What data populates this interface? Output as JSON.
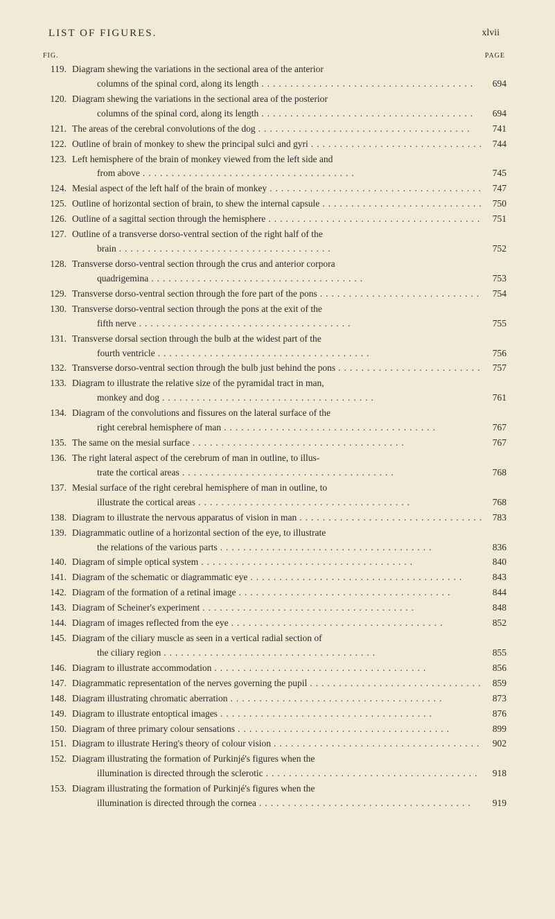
{
  "header": {
    "title": "LIST OF FIGURES.",
    "page_label": "xlvii"
  },
  "column_headers": {
    "left": "FIG.",
    "right": "PAGE"
  },
  "dots_fill": ".....................................",
  "entries": [
    {
      "fig": "119.",
      "line1": "Diagram shewing the variations in the sectional area of the anterior",
      "line2": "columns of the spinal cord, along its length",
      "page": "694"
    },
    {
      "fig": "120.",
      "line1": "Diagram shewing the variations in the sectional area of the posterior",
      "line2": "columns of the spinal cord, along its length",
      "page": "694"
    },
    {
      "fig": "121.",
      "line1": "The areas of the cerebral convolutions of the dog",
      "page": "741"
    },
    {
      "fig": "122.",
      "line1": "Outline of brain of monkey to shew the principal sulci and gyri",
      "page": "744"
    },
    {
      "fig": "123.",
      "line1": "Left hemisphere of the brain of monkey viewed from the left side and",
      "line2": "from above",
      "page": "745"
    },
    {
      "fig": "124.",
      "line1": "Mesial aspect of the left half of the brain of monkey",
      "page": "747"
    },
    {
      "fig": "125.",
      "line1": "Outline of horizontal section of brain, to shew the internal capsule",
      "page": "750"
    },
    {
      "fig": "126.",
      "line1": "Outline of a sagittal section through the hemisphere",
      "page": "751"
    },
    {
      "fig": "127.",
      "line1": "Outline of a transverse dorso-ventral section of the right half of the",
      "line2": "brain",
      "page": "752"
    },
    {
      "fig": "128.",
      "line1": "Transverse dorso-ventral section through the crus and anterior corpora",
      "line2": "quadrigemina",
      "page": "753"
    },
    {
      "fig": "129.",
      "line1": "Transverse dorso-ventral section through the fore part of the pons",
      "page": "754"
    },
    {
      "fig": "130.",
      "line1": "Transverse dorso-ventral section through the pons at the exit of the",
      "line2": "fifth nerve",
      "page": "755"
    },
    {
      "fig": "131.",
      "line1": "Transverse dorsal section through the bulb at the widest part of the",
      "line2": "fourth ventricle",
      "page": "756"
    },
    {
      "fig": "132.",
      "line1": "Transverse dorso-ventral section through the bulb just behind the pons",
      "page": "757"
    },
    {
      "fig": "133.",
      "line1": "Diagram to illustrate the relative size of the pyramidal tract in man,",
      "line2": "monkey and dog",
      "page": "761"
    },
    {
      "fig": "134.",
      "line1": "Diagram of the convolutions and fissures on the lateral surface of the",
      "line2": "right cerebral hemisphere of man",
      "page": "767"
    },
    {
      "fig": "135.",
      "line1": "The same on the mesial surface",
      "page": "767"
    },
    {
      "fig": "136.",
      "line1": "The right lateral aspect of the cerebrum of man in outline, to illus-",
      "line2": "trate the cortical areas",
      "page": "768"
    },
    {
      "fig": "137.",
      "line1": "Mesial surface of the right cerebral hemisphere of man in outline, to",
      "line2": "illustrate the cortical areas",
      "page": "768"
    },
    {
      "fig": "138.",
      "line1": "Diagram to illustrate the nervous apparatus of vision in man",
      "page": "783"
    },
    {
      "fig": "139.",
      "line1": "Diagrammatic outline of a horizontal section of the eye, to illustrate",
      "line2": "the relations of the various parts",
      "page": "836"
    },
    {
      "fig": "140.",
      "line1": "Diagram of simple optical system",
      "page": "840"
    },
    {
      "fig": "141.",
      "line1": "Diagram of the schematic or diagrammatic eye",
      "page": "843"
    },
    {
      "fig": "142.",
      "line1": "Diagram of the formation of a retinal image",
      "page": "844"
    },
    {
      "fig": "143.",
      "line1": "Diagram of Scheiner's experiment",
      "page": "848"
    },
    {
      "fig": "144.",
      "line1": "Diagram of images reflected from the eye",
      "page": "852"
    },
    {
      "fig": "145.",
      "line1": "Diagram of the ciliary muscle as seen in a vertical radial section of",
      "line2": "the ciliary region",
      "page": "855"
    },
    {
      "fig": "146.",
      "line1": "Diagram to illustrate accommodation",
      "page": "856"
    },
    {
      "fig": "147.",
      "line1": "Diagrammatic representation of the nerves governing the pupil",
      "page": "859"
    },
    {
      "fig": "148.",
      "line1": "Diagram illustrating chromatic aberration",
      "page": "873"
    },
    {
      "fig": "149.",
      "line1": "Diagram to illustrate entoptical images",
      "page": "876"
    },
    {
      "fig": "150.",
      "line1": "Diagram of three primary colour sensations",
      "page": "899"
    },
    {
      "fig": "151.",
      "line1": "Diagram to illustrate Hering's theory of colour vision",
      "page": "902"
    },
    {
      "fig": "152.",
      "line1": "Diagram illustrating the formation of Purkinjé's figures when the",
      "line2": "illumination is directed through the sclerotic",
      "page": "918"
    },
    {
      "fig": "153.",
      "line1": "Diagram illustrating the formation of Purkinjé's figures when the",
      "line2": "illumination is directed through the cornea",
      "page": "919"
    }
  ]
}
